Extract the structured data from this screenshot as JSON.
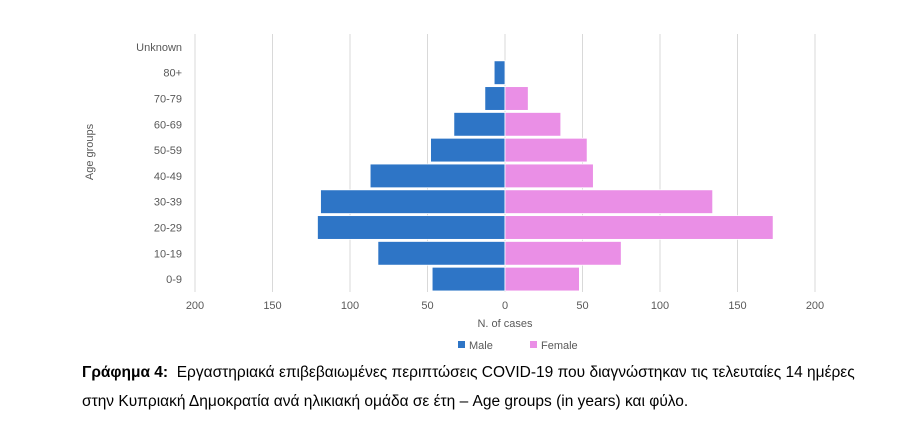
{
  "chart_data": {
    "type": "bar",
    "orientation": "horizontal",
    "categories": [
      "0-9",
      "10-19",
      "20-29",
      "30-39",
      "40-49",
      "50-59",
      "60-69",
      "70-79",
      "80+",
      "Unknown"
    ],
    "series": [
      {
        "name": "Male",
        "values": [
          47,
          82,
          121,
          119,
          87,
          48,
          33,
          13,
          7,
          0
        ],
        "color": "#2e75c6"
      },
      {
        "name": "Female",
        "values": [
          48,
          75,
          173,
          134,
          57,
          53,
          36,
          15,
          0,
          0
        ],
        "color": "#ea8fe6"
      }
    ],
    "xlabel": "N. of cases",
    "ylabel": "Age groups",
    "xlim": [
      -200,
      200
    ],
    "xticks": [
      "200",
      "150",
      "100",
      "50",
      "0",
      "50",
      "100",
      "150",
      "200"
    ],
    "grid": true,
    "legend_position": "bottom"
  },
  "caption": {
    "label": "Γράφημα 4:",
    "text": "Εργαστηριακά επιβεβαιωμένες περιπτώσεις COVID-19 που διαγνώστηκαν τις τελευταίες 14 ημέρες στην Κυπριακή Δημοκρατία ανά ηλικιακή ομάδα σε έτη – Age groups (in years) και φύλο."
  }
}
